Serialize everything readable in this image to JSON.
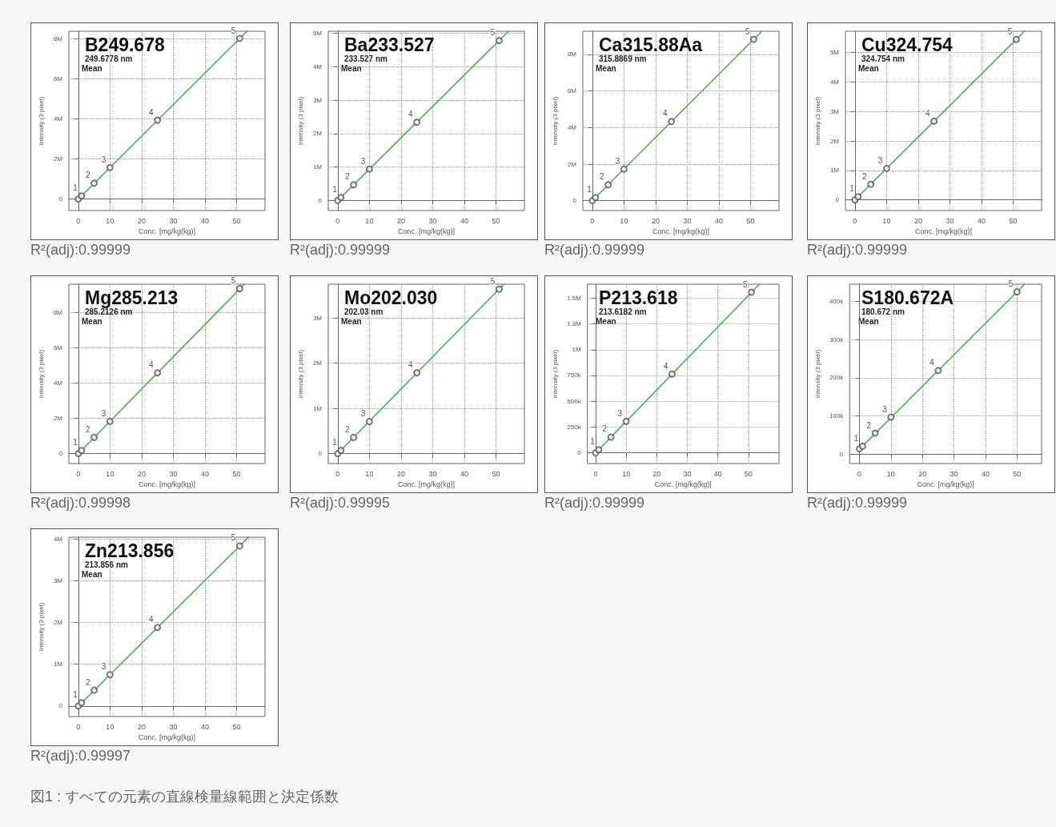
{
  "chart_data": [
    {
      "type": "scatter",
      "title": "B249.678",
      "subtitle": "249.6778 nm",
      "xlabel": "Conc. [mg/kg(kg)]",
      "ylabel": "Intensity (3 pixel)",
      "annotations": [
        "Mean",
        "R²(adj):0.99999",
        {
          "text": "1",
          "x": 1,
          "y": 160000
        },
        {
          "text": "2",
          "x": 5,
          "y": 790000
        },
        {
          "text": "3",
          "x": 10,
          "y": 1570000
        },
        {
          "text": "4",
          "x": 25,
          "y": 3930000
        },
        {
          "text": "5",
          "x": 51,
          "y": 8000000
        }
      ],
      "xlim": [
        -3,
        59
      ],
      "xticks": [
        0,
        10,
        20,
        30,
        40,
        50
      ],
      "ylim": [
        -570000,
        8360000
      ],
      "yticks": [
        {
          "value": 0,
          "label": "0"
        },
        {
          "value": 2000000,
          "label": "2M"
        },
        {
          "value": 4000000,
          "label": "4M"
        },
        {
          "value": 6000000,
          "label": "6M"
        },
        {
          "value": 8000000,
          "label": "8M"
        }
      ],
      "grid": true,
      "series": [
        {
          "color": "#555555",
          "marker": "circle",
          "x": [
            0,
            1,
            5,
            10,
            25,
            51
          ],
          "values": [
            0,
            160000,
            790000,
            1570000,
            3930000,
            8000000
          ]
        },
        {
          "type": "line",
          "marker": "none",
          "color": "#3cb043",
          "x": [
            0,
            53.3
          ],
          "values": [
            0,
            8360000
          ]
        }
      ]
    },
    {
      "type": "scatter",
      "title": "Ba233.527",
      "subtitle": "233.527 nm",
      "xlabel": "Conc. [mg/kg(kg)]",
      "ylabel": "Intensity (3 pixel)",
      "annotations": [
        "Mean",
        "R²(adj):0.99999",
        {
          "text": "1",
          "x": 1,
          "y": 90000
        },
        {
          "text": "2",
          "x": 5,
          "y": 470000
        },
        {
          "text": "3",
          "x": 10,
          "y": 940000
        },
        {
          "text": "4",
          "x": 25,
          "y": 2340000
        },
        {
          "text": "5",
          "x": 51,
          "y": 4780000
        }
      ],
      "xlim": [
        -3,
        59
      ],
      "xticks": [
        0,
        10,
        20,
        30,
        40,
        50
      ],
      "ylim": [
        -300000,
        5060000
      ],
      "yticks": [
        {
          "value": 0,
          "label": "0"
        },
        {
          "value": 1000000,
          "label": "1M"
        },
        {
          "value": 2000000,
          "label": "2M"
        },
        {
          "value": 3000000,
          "label": "3M"
        },
        {
          "value": 4000000,
          "label": "4M"
        },
        {
          "value": 5000000,
          "label": "5M"
        }
      ],
      "grid": true,
      "series": [
        {
          "color": "#555555",
          "marker": "circle",
          "x": [
            0,
            1,
            5,
            10,
            25,
            51
          ],
          "values": [
            0,
            90000,
            470000,
            940000,
            2340000,
            4780000
          ]
        },
        {
          "type": "line",
          "marker": "none",
          "color": "#3cb043",
          "x": [
            0,
            54
          ],
          "values": [
            0,
            5060000
          ]
        }
      ]
    },
    {
      "type": "scatter",
      "title": "Ca315.88Aa",
      "subtitle": "315.8869 nm",
      "xlabel": "Conc. [mg/kg(kg)]",
      "ylabel": "Intensity (3 pixel)",
      "annotations": [
        "Mean",
        "R²(adj):0.99999",
        {
          "text": "1",
          "x": 1,
          "y": 170000
        },
        {
          "text": "2",
          "x": 5,
          "y": 870000
        },
        {
          "text": "3",
          "x": 10,
          "y": 1730000
        },
        {
          "text": "4",
          "x": 25,
          "y": 4330000
        },
        {
          "text": "5",
          "x": 51,
          "y": 8830000
        }
      ],
      "xlim": [
        -3,
        59
      ],
      "xticks": [
        0,
        10,
        20,
        30,
        40,
        50
      ],
      "ylim": [
        -540000,
        9270000
      ],
      "yticks": [
        {
          "value": 0,
          "label": "0"
        },
        {
          "value": 2000000,
          "label": "2M"
        },
        {
          "value": 4000000,
          "label": "4M"
        },
        {
          "value": 6000000,
          "label": "6M"
        },
        {
          "value": 8000000,
          "label": "8M"
        }
      ],
      "grid": true,
      "series": [
        {
          "color": "#555555",
          "marker": "circle",
          "x": [
            0,
            1,
            5,
            10,
            25,
            51
          ],
          "values": [
            0,
            170000,
            870000,
            1730000,
            4330000,
            8830000
          ]
        },
        {
          "type": "line",
          "marker": "none",
          "color": "#3cb043",
          "x": [
            0,
            53.6
          ],
          "values": [
            0,
            9270000
          ]
        }
      ]
    },
    {
      "type": "scatter",
      "title": "Cu324.754",
      "subtitle": "324.754 nm",
      "xlabel": "Conc. [mg/kg(kg)]",
      "ylabel": "Intensity (3 pixel)",
      "annotations": [
        "Mean",
        "R²(adj):0.99999",
        {
          "text": "1",
          "x": 1,
          "y": 110000
        },
        {
          "text": "2",
          "x": 5,
          "y": 530000
        },
        {
          "text": "3",
          "x": 10,
          "y": 1070000
        },
        {
          "text": "4",
          "x": 25,
          "y": 2670000
        },
        {
          "text": "5",
          "x": 51,
          "y": 5440000
        }
      ],
      "xlim": [
        -3,
        59
      ],
      "xticks": [
        0,
        10,
        20,
        30,
        40,
        50
      ],
      "ylim": [
        -360000,
        5720000
      ],
      "yticks": [
        {
          "value": 0,
          "label": "0"
        },
        {
          "value": 1000000,
          "label": "1M"
        },
        {
          "value": 2000000,
          "label": "2M"
        },
        {
          "value": 3000000,
          "label": "3M"
        },
        {
          "value": 4000000,
          "label": "4M"
        },
        {
          "value": 5000000,
          "label": "5M"
        }
      ],
      "grid": true,
      "series": [
        {
          "color": "#555555",
          "marker": "circle",
          "x": [
            0,
            1,
            5,
            10,
            25,
            51
          ],
          "values": [
            0,
            110000,
            530000,
            1070000,
            2670000,
            5440000
          ]
        },
        {
          "type": "line",
          "marker": "none",
          "color": "#3cb043",
          "x": [
            0,
            53.6
          ],
          "values": [
            0,
            5720000
          ]
        }
      ]
    },
    {
      "type": "scatter",
      "title": "Mg285.213",
      "subtitle": "285.2126 nm",
      "xlabel": "Conc. [mg/kg(kg)]",
      "ylabel": "Intensity (3 pixel)",
      "annotations": [
        "Mean",
        "R²(adj):0.99998",
        {
          "text": "1",
          "x": 1,
          "y": 180000
        },
        {
          "text": "2",
          "x": 5,
          "y": 920000
        },
        {
          "text": "3",
          "x": 10,
          "y": 1830000
        },
        {
          "text": "4",
          "x": 25,
          "y": 4580000
        },
        {
          "text": "5",
          "x": 51,
          "y": 9350000
        }
      ],
      "xlim": [
        -3,
        59
      ],
      "xticks": [
        0,
        10,
        20,
        30,
        40,
        50
      ],
      "ylim": [
        -560000,
        9600000
      ],
      "yticks": [
        {
          "value": 0,
          "label": "0"
        },
        {
          "value": 2000000,
          "label": "2M"
        },
        {
          "value": 4000000,
          "label": "4M"
        },
        {
          "value": 6000000,
          "label": "6M"
        },
        {
          "value": 8000000,
          "label": "8M"
        }
      ],
      "grid": true,
      "series": [
        {
          "color": "#555555",
          "marker": "circle",
          "x": [
            0,
            1,
            5,
            10,
            25,
            51
          ],
          "values": [
            0,
            180000,
            920000,
            1830000,
            4580000,
            9350000
          ]
        },
        {
          "type": "line",
          "marker": "none",
          "color": "#3cb043",
          "x": [
            0,
            52.5
          ],
          "values": [
            0,
            9600000
          ]
        }
      ]
    },
    {
      "type": "scatter",
      "title": "Mo202.030",
      "subtitle": "202.03 nm",
      "xlabel": "Conc. [mg/kg(kg)]",
      "ylabel": "Intensity (3 pixel)",
      "annotations": [
        "Mean",
        "R²(adj):0.99995",
        {
          "text": "1",
          "x": 1,
          "y": 70000
        },
        {
          "text": "2",
          "x": 5,
          "y": 360000
        },
        {
          "text": "3",
          "x": 10,
          "y": 710000
        },
        {
          "text": "4",
          "x": 25,
          "y": 1790000
        },
        {
          "text": "5",
          "x": 51,
          "y": 3640000
        }
      ],
      "xlim": [
        -3,
        59
      ],
      "xticks": [
        0,
        10,
        20,
        30,
        40,
        50
      ],
      "ylim": [
        -220000,
        3750000
      ],
      "yticks": [
        {
          "value": 0,
          "label": "0"
        },
        {
          "value": 1000000,
          "label": "1M"
        },
        {
          "value": 2000000,
          "label": "2M"
        },
        {
          "value": 3000000,
          "label": "3M"
        }
      ],
      "grid": true,
      "series": [
        {
          "color": "#555555",
          "marker": "circle",
          "x": [
            0,
            1,
            5,
            10,
            25,
            51
          ],
          "values": [
            0,
            70000,
            360000,
            710000,
            1790000,
            3640000
          ]
        },
        {
          "type": "line",
          "marker": "none",
          "color": "#3cb043",
          "x": [
            0,
            52.5
          ],
          "values": [
            0,
            3750000
          ]
        }
      ]
    },
    {
      "type": "scatter",
      "title": "P213.618",
      "subtitle": "213.6182 nm",
      "xlabel": "Conc. [mg/kg(kg)]",
      "ylabel": "Intensity (3 pixel)",
      "annotations": [
        "Mean",
        "R²(adj):0.99999",
        {
          "text": "1",
          "x": 1,
          "y": 30000
        },
        {
          "text": "2",
          "x": 5,
          "y": 153000
        },
        {
          "text": "3",
          "x": 10,
          "y": 305000
        },
        {
          "text": "4",
          "x": 25,
          "y": 763000
        },
        {
          "text": "5",
          "x": 51,
          "y": 1556000
        }
      ],
      "xlim": [
        -2.7,
        60
      ],
      "xticks": [
        0,
        10,
        20,
        30,
        40,
        50
      ],
      "ylim": [
        -103000,
        1634000
      ],
      "yticks": [
        {
          "value": 0,
          "label": "0"
        },
        {
          "value": 250000,
          "label": "250k"
        },
        {
          "value": 500000,
          "label": "500k"
        },
        {
          "value": 750000,
          "label": "750k"
        },
        {
          "value": 1000000,
          "label": "1M"
        },
        {
          "value": 1250000,
          "label": "1.3M"
        },
        {
          "value": 1500000,
          "label": "1.5M"
        }
      ],
      "grid": true,
      "series": [
        {
          "color": "#555555",
          "marker": "circle",
          "x": [
            0,
            1,
            5,
            10,
            25,
            51
          ],
          "values": [
            0,
            30000,
            153000,
            305000,
            763000,
            1556000
          ]
        },
        {
          "type": "line",
          "marker": "none",
          "color": "#3cb043",
          "x": [
            0,
            53.6
          ],
          "values": [
            0,
            1634000
          ]
        }
      ]
    },
    {
      "type": "scatter",
      "title": "S180.672A",
      "subtitle": "180.672 nm",
      "xlabel": "Conc. [mg/kg(kg)]",
      "ylabel": "Intensity (3 pixel)",
      "annotations": [
        "Mean",
        "R²(adj):0.99999",
        {
          "text": "1",
          "x": 1,
          "y": 21000
        },
        {
          "text": "2",
          "x": 5,
          "y": 55000
        },
        {
          "text": "3",
          "x": 10,
          "y": 97000
        },
        {
          "text": "4",
          "x": 25,
          "y": 219000
        },
        {
          "text": "5",
          "x": 50,
          "y": 425000
        }
      ],
      "xlim": [
        -3.1,
        57.8
      ],
      "xticks": [
        0,
        10,
        20,
        30,
        40,
        50
      ],
      "ylim": [
        -24500,
        445000
      ],
      "yticks": [
        {
          "value": 0,
          "label": "0"
        },
        {
          "value": 100000,
          "label": "100k"
        },
        {
          "value": 200000,
          "label": "200k"
        },
        {
          "value": 300000,
          "label": "300k"
        },
        {
          "value": 400000,
          "label": "400k"
        }
      ],
      "grid": true,
      "series": [
        {
          "color": "#555555",
          "marker": "circle",
          "x": [
            0,
            1,
            5,
            10,
            25,
            50
          ],
          "values": [
            14000,
            21000,
            55000,
            97000,
            219000,
            425000
          ]
        },
        {
          "type": "line",
          "marker": "none",
          "color": "#3cb043",
          "x": [
            0,
            52.4
          ],
          "values": [
            13000,
            445000
          ]
        }
      ]
    },
    {
      "type": "scatter",
      "title": "Zn213.856",
      "subtitle": "213.856 nm",
      "xlabel": "Conc. [mg/kg(kg)]",
      "ylabel": "Intensity (3 pixel)",
      "annotations": [
        "Mean",
        "R²(adj):0.99997",
        "図1 : すべての元素の直線検量線範囲と決定係数",
        {
          "text": "1",
          "x": 1,
          "y": 80000
        },
        {
          "text": "2",
          "x": 5,
          "y": 380000
        },
        {
          "text": "3",
          "x": 10,
          "y": 750000
        },
        {
          "text": "4",
          "x": 25,
          "y": 1880000
        },
        {
          "text": "5",
          "x": 51,
          "y": 3830000
        }
      ],
      "xlim": [
        -3,
        59
      ],
      "xticks": [
        0,
        10,
        20,
        30,
        40,
        50
      ],
      "ylim": [
        -250000,
        4040000
      ],
      "yticks": [
        {
          "value": 0,
          "label": "0"
        },
        {
          "value": 1000000,
          "label": "1M"
        },
        {
          "value": 2000000,
          "label": "2M"
        },
        {
          "value": 3000000,
          "label": "3M"
        },
        {
          "value": 4000000,
          "label": "4M"
        }
      ],
      "grid": true,
      "series": [
        {
          "color": "#555555",
          "marker": "circle",
          "x": [
            0,
            1,
            5,
            10,
            25,
            51
          ],
          "values": [
            0,
            80000,
            380000,
            750000,
            1880000,
            3830000
          ]
        },
        {
          "type": "line",
          "marker": "none",
          "color": "#3cb043",
          "x": [
            0,
            53.8
          ],
          "values": [
            0,
            4040000
          ]
        }
      ]
    }
  ]
}
